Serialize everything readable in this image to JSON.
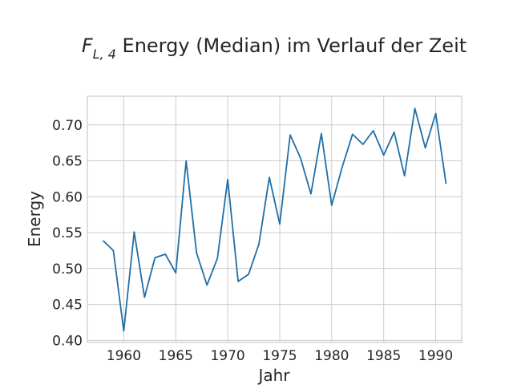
{
  "title": {
    "math_symbol": "F",
    "math_subscript": "L, 4",
    "text": " Energy (Median) im Verlauf der Zeit"
  },
  "colors": {
    "line": "#1f6fa8",
    "grid": "#cccccc",
    "text": "#262626",
    "background": "#ffffff"
  },
  "chart_data": {
    "type": "line",
    "title": "F_{L, 4} Energy (Median) im Verlauf der Zeit",
    "xlabel": "Jahr",
    "ylabel": "Energy",
    "xlim": [
      1956.5,
      1992.5
    ],
    "ylim": [
      0.397,
      0.74
    ],
    "grid": true,
    "x_ticks": [
      1960,
      1965,
      1970,
      1975,
      1980,
      1985,
      1990
    ],
    "x_tick_labels": [
      "1960",
      "1965",
      "1970",
      "1975",
      "1980",
      "1985",
      "1990"
    ],
    "y_ticks": [
      0.4,
      0.45,
      0.5,
      0.55,
      0.6,
      0.65,
      0.7
    ],
    "y_tick_labels": [
      "0.40",
      "0.45",
      "0.50",
      "0.55",
      "0.60",
      "0.65",
      "0.70"
    ],
    "series": [
      {
        "x": [
          1958,
          1959,
          1960,
          1961,
          1962,
          1963,
          1964,
          1965,
          1966,
          1967,
          1968,
          1969,
          1970,
          1971,
          1972,
          1973,
          1974,
          1975,
          1976,
          1977,
          1978,
          1979,
          1980,
          1981,
          1982,
          1983,
          1984,
          1985,
          1986,
          1987,
          1988,
          1989,
          1990,
          1991
        ],
        "values": [
          0.539,
          0.525,
          0.413,
          0.551,
          0.46,
          0.515,
          0.52,
          0.494,
          0.65,
          0.522,
          0.477,
          0.514,
          0.624,
          0.482,
          0.492,
          0.534,
          0.627,
          0.562,
          0.686,
          0.654,
          0.604,
          0.688,
          0.588,
          0.641,
          0.687,
          0.673,
          0.692,
          0.658,
          0.69,
          0.629,
          0.723,
          0.668,
          0.716,
          0.618
        ]
      }
    ]
  }
}
